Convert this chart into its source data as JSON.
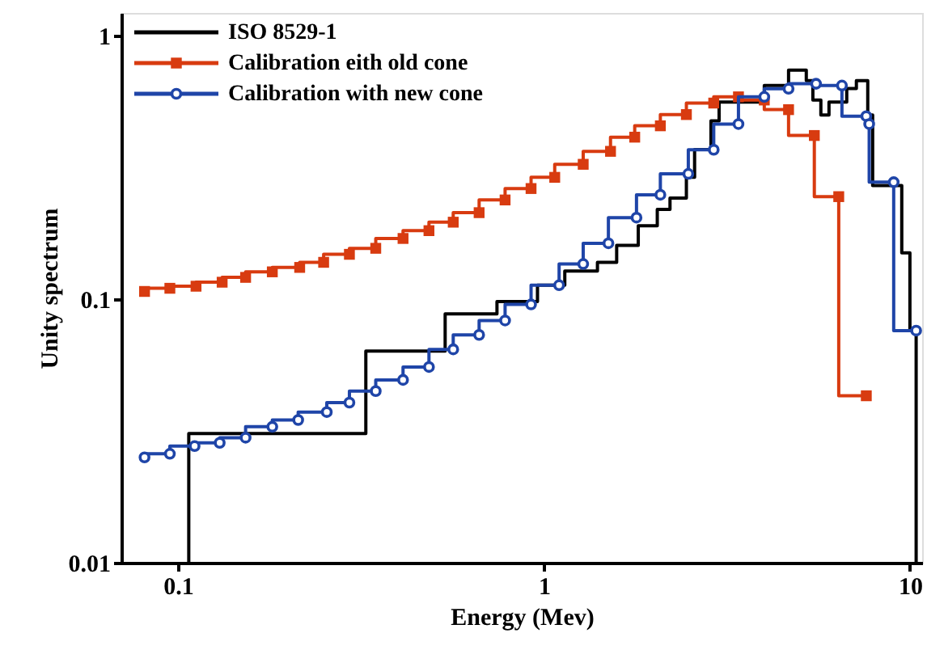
{
  "chart_data": {
    "type": "step",
    "xlabel": "Energy (Mev)",
    "ylabel": "Unity spectrum",
    "xlim": [
      0.07,
      10.8
    ],
    "ylim": [
      0.01,
      1.22
    ],
    "xticks": [
      0.1,
      1,
      10
    ],
    "yticks": [
      0.01,
      0.1,
      1
    ],
    "log": "xy",
    "grid": false,
    "legend": "top left",
    "series": [
      {
        "name": "ISO 8529-1",
        "color": "#000000",
        "marker": "none",
        "x": [
          0.107,
          0.326,
          0.537,
          0.744,
          0.96,
          1.14,
          1.4,
          1.58,
          1.81,
          2.04,
          2.21,
          2.45,
          2.58,
          2.86,
          3.01,
          4.0,
          4.66,
          5.21,
          5.43,
          5.71,
          6.01,
          6.72,
          7.14,
          7.67,
          7.91,
          8.5,
          9.5,
          10.0,
          10.4,
          10.4
        ],
        "values": [
          0.01,
          0.0309,
          0.0636,
          0.088,
          0.098,
          0.113,
          0.128,
          0.138,
          0.16,
          0.19,
          0.219,
          0.242,
          0.29,
          0.37,
          0.475,
          0.56,
          0.647,
          0.74,
          0.675,
          0.57,
          0.5,
          0.56,
          0.63,
          0.675,
          0.5,
          0.27,
          0.27,
          0.15,
          0.076,
          0.01
        ]
      },
      {
        "name": "Calibration eith old cone",
        "color": "#d83b10",
        "marker": "square",
        "x": [
          0.081,
          0.095,
          0.112,
          0.132,
          0.153,
          0.181,
          0.215,
          0.25,
          0.294,
          0.347,
          0.412,
          0.485,
          0.565,
          0.665,
          0.783,
          0.922,
          1.07,
          1.28,
          1.52,
          1.77,
          2.08,
          2.45,
          2.91,
          3.4,
          4.0,
          4.66,
          5.48,
          6.39,
          7.6
        ],
        "values": [
          0.107,
          0.11,
          0.112,
          0.116,
          0.121,
          0.127,
          0.132,
          0.138,
          0.148,
          0.156,
          0.17,
          0.182,
          0.196,
          0.213,
          0.238,
          0.263,
          0.29,
          0.325,
          0.364,
          0.412,
          0.455,
          0.502,
          0.555,
          0.586,
          0.57,
          0.524,
          0.418,
          0.245,
          0.043
        ]
      },
      {
        "name": "Calibration with new cone",
        "color": "#1f45a8",
        "marker": "circle",
        "x": [
          0.081,
          0.095,
          0.111,
          0.13,
          0.153,
          0.181,
          0.213,
          0.255,
          0.294,
          0.347,
          0.412,
          0.485,
          0.565,
          0.665,
          0.783,
          0.922,
          1.1,
          1.28,
          1.5,
          1.79,
          2.08,
          2.48,
          2.91,
          3.4,
          4.0,
          4.66,
          5.54,
          6.52,
          7.6,
          7.74,
          9.03,
          10.4
        ],
        "values": [
          0.0251,
          0.0259,
          0.0277,
          0.0285,
          0.0298,
          0.0328,
          0.0348,
          0.0373,
          0.0405,
          0.0448,
          0.0494,
          0.0553,
          0.0645,
          0.0732,
          0.083,
          0.0955,
          0.113,
          0.136,
          0.163,
          0.204,
          0.249,
          0.299,
          0.369,
          0.462,
          0.586,
          0.629,
          0.657,
          0.647,
          0.495,
          0.462,
          0.278,
          0.076
        ]
      }
    ]
  }
}
